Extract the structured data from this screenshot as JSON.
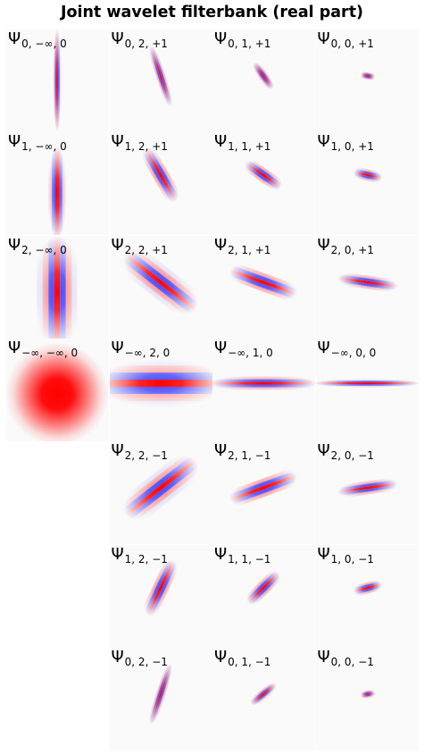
{
  "title": "Joint wavelet filterbank (real part)",
  "colors": {
    "positive": "#ff0000",
    "negative": "#0000ff",
    "background": "#ffffff"
  },
  "rows": [
    [
      {
        "label": "0, −∞, 0",
        "kind": "vertical",
        "scale": 0
      },
      {
        "label": "0, 2, +1",
        "kind": "wavelet",
        "j": 0,
        "theta": 2,
        "spin": 1
      },
      {
        "label": "0, 1, +1",
        "kind": "wavelet",
        "j": 0,
        "theta": 1,
        "spin": 1
      },
      {
        "label": "0, 0, +1",
        "kind": "wavelet",
        "j": 0,
        "theta": 0,
        "spin": 1
      }
    ],
    [
      {
        "label": "1, −∞, 0",
        "kind": "vertical",
        "scale": 1
      },
      {
        "label": "1, 2, +1",
        "kind": "wavelet",
        "j": 1,
        "theta": 2,
        "spin": 1
      },
      {
        "label": "1, 1, +1",
        "kind": "wavelet",
        "j": 1,
        "theta": 1,
        "spin": 1
      },
      {
        "label": "1, 0, +1",
        "kind": "wavelet",
        "j": 1,
        "theta": 0,
        "spin": 1
      }
    ],
    [
      {
        "label": "2, −∞, 0",
        "kind": "vertical",
        "scale": 2
      },
      {
        "label": "2, 2, +1",
        "kind": "wavelet",
        "j": 2,
        "theta": 2,
        "spin": 1
      },
      {
        "label": "2, 1, +1",
        "kind": "wavelet",
        "j": 2,
        "theta": 1,
        "spin": 1
      },
      {
        "label": "2, 0, +1",
        "kind": "wavelet",
        "j": 2,
        "theta": 0,
        "spin": 1
      }
    ],
    [
      {
        "label": "−∞, −∞, 0",
        "kind": "lowpass"
      },
      {
        "label": "−∞, 2, 0",
        "kind": "horizontal",
        "theta": 2
      },
      {
        "label": "−∞, 1, 0",
        "kind": "horizontal",
        "theta": 1
      },
      {
        "label": "−∞, 0, 0",
        "kind": "horizontal",
        "theta": 0
      }
    ],
    [
      null,
      {
        "label": "2, 2, −1",
        "kind": "wavelet",
        "j": 2,
        "theta": 2,
        "spin": -1
      },
      {
        "label": "2, 1, −1",
        "kind": "wavelet",
        "j": 2,
        "theta": 1,
        "spin": -1
      },
      {
        "label": "2, 0, −1",
        "kind": "wavelet",
        "j": 2,
        "theta": 0,
        "spin": -1
      }
    ],
    [
      null,
      {
        "label": "1, 2, −1",
        "kind": "wavelet",
        "j": 1,
        "theta": 2,
        "spin": -1
      },
      {
        "label": "1, 1, −1",
        "kind": "wavelet",
        "j": 1,
        "theta": 1,
        "spin": -1
      },
      {
        "label": "1, 0, −1",
        "kind": "wavelet",
        "j": 1,
        "theta": 0,
        "spin": -1
      }
    ],
    [
      null,
      {
        "label": "0, 2, −1",
        "kind": "wavelet",
        "j": 0,
        "theta": 2,
        "spin": -1
      },
      {
        "label": "0, 1, −1",
        "kind": "wavelet",
        "j": 0,
        "theta": 1,
        "spin": -1
      },
      {
        "label": "0, 0, −1",
        "kind": "wavelet",
        "j": 0,
        "theta": 0,
        "spin": -1
      }
    ]
  ]
}
